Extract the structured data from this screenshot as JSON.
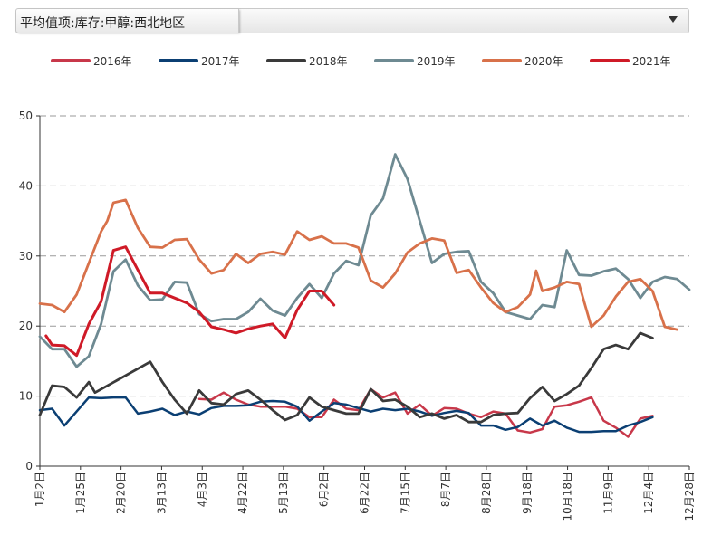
{
  "selector": {
    "value": "平均值项:库存:甲醇:西北地区"
  },
  "chart_data": {
    "type": "line",
    "title": "",
    "xlabel": "",
    "ylabel": "",
    "ylim": [
      0,
      50
    ],
    "yticks": [
      0,
      10,
      20,
      30,
      40,
      50
    ],
    "grid": "horizontal-dashed",
    "legend_position": "top",
    "xtick_labels": [
      "1月2日",
      "1月25日",
      "2月20日",
      "3月13日",
      "4月3日",
      "4月22日",
      "5月13日",
      "6月2日",
      "6月22日",
      "7月15日",
      "8月7日",
      "8月28日",
      "9月18日",
      "10月18日",
      "11月9日",
      "12月4日",
      "12月28日"
    ],
    "series": [
      {
        "name": "2016年",
        "color": "#c8384a",
        "width": 2.5,
        "points": [
          [
            13.0,
            9.6
          ],
          [
            14.0,
            9.5
          ],
          [
            15.0,
            10.5
          ],
          [
            16.0,
            9.5
          ],
          [
            17.0,
            8.8
          ],
          [
            18.0,
            8.5
          ],
          [
            19.0,
            8.5
          ],
          [
            20.0,
            8.5
          ],
          [
            21.0,
            8.2
          ],
          [
            22.0,
            7.0
          ],
          [
            23.0,
            7.0
          ],
          [
            24.0,
            9.5
          ],
          [
            25.0,
            8.2
          ],
          [
            26.0,
            8.0
          ],
          [
            27.0,
            11.0
          ],
          [
            28.0,
            9.8
          ],
          [
            29.0,
            10.5
          ],
          [
            30.0,
            7.5
          ],
          [
            31.0,
            8.8
          ],
          [
            32.0,
            7.2
          ],
          [
            33.0,
            8.3
          ],
          [
            34.0,
            8.2
          ],
          [
            35.0,
            7.5
          ],
          [
            36.0,
            7.0
          ],
          [
            37.0,
            7.8
          ],
          [
            38.0,
            7.5
          ],
          [
            39.0,
            5.1
          ],
          [
            40.0,
            4.8
          ],
          [
            41.0,
            5.3
          ],
          [
            42.0,
            8.5
          ],
          [
            43.0,
            8.7
          ],
          [
            44.0,
            9.2
          ],
          [
            45.0,
            9.8
          ],
          [
            46.0,
            6.5
          ],
          [
            47.0,
            5.5
          ],
          [
            48.0,
            4.2
          ],
          [
            49.0,
            6.8
          ],
          [
            50.0,
            7.2
          ]
        ]
      },
      {
        "name": "2017年",
        "color": "#0b3f73",
        "width": 2.5,
        "points": [
          [
            0.0,
            8.0
          ],
          [
            1.0,
            8.2
          ],
          [
            2.0,
            5.8
          ],
          [
            3.0,
            7.8
          ],
          [
            4.0,
            9.8
          ],
          [
            5.0,
            9.7
          ],
          [
            6.0,
            9.8
          ],
          [
            7.0,
            9.8
          ],
          [
            8.0,
            7.5
          ],
          [
            9.0,
            7.8
          ],
          [
            10.0,
            8.2
          ],
          [
            11.0,
            7.3
          ],
          [
            12.0,
            7.8
          ],
          [
            13.0,
            7.4
          ],
          [
            14.0,
            8.3
          ],
          [
            15.0,
            8.6
          ],
          [
            16.0,
            8.6
          ],
          [
            17.0,
            8.7
          ],
          [
            18.0,
            9.2
          ],
          [
            19.0,
            9.3
          ],
          [
            20.0,
            9.2
          ],
          [
            21.0,
            8.5
          ],
          [
            22.0,
            6.5
          ],
          [
            23.0,
            7.8
          ],
          [
            24.0,
            9.0
          ],
          [
            25.0,
            8.8
          ],
          [
            26.0,
            8.3
          ],
          [
            27.0,
            7.8
          ],
          [
            28.0,
            8.2
          ],
          [
            29.0,
            8.0
          ],
          [
            30.0,
            8.2
          ],
          [
            31.0,
            7.8
          ],
          [
            32.0,
            7.2
          ],
          [
            33.0,
            7.6
          ],
          [
            34.0,
            7.9
          ],
          [
            35.0,
            7.6
          ],
          [
            36.0,
            5.8
          ],
          [
            37.0,
            5.8
          ],
          [
            38.0,
            5.2
          ],
          [
            39.0,
            5.6
          ],
          [
            40.0,
            6.8
          ],
          [
            41.0,
            5.8
          ],
          [
            42.0,
            6.5
          ],
          [
            43.0,
            5.5
          ],
          [
            44.0,
            4.9
          ],
          [
            45.0,
            4.9
          ],
          [
            46.0,
            5.0
          ],
          [
            47.0,
            5.0
          ],
          [
            48.0,
            5.8
          ],
          [
            49.0,
            6.3
          ],
          [
            50.0,
            7.0
          ]
        ]
      },
      {
        "name": "2018年",
        "color": "#3a3a3a",
        "width": 2.8,
        "points": [
          [
            0.0,
            7.3
          ],
          [
            1.0,
            11.5
          ],
          [
            2.0,
            11.3
          ],
          [
            3.0,
            9.8
          ],
          [
            4.0,
            12.0
          ],
          [
            4.5,
            10.5
          ],
          [
            9.0,
            14.9
          ],
          [
            10.0,
            12.0
          ],
          [
            11.0,
            9.5
          ],
          [
            12.0,
            7.5
          ],
          [
            13.0,
            10.8
          ],
          [
            14.0,
            9.0
          ],
          [
            15.0,
            8.8
          ],
          [
            16.0,
            10.3
          ],
          [
            17.0,
            10.8
          ],
          [
            18.0,
            9.5
          ],
          [
            19.0,
            8.0
          ],
          [
            20.0,
            6.6
          ],
          [
            21.0,
            7.3
          ],
          [
            22.0,
            9.8
          ],
          [
            23.0,
            8.5
          ],
          [
            24.0,
            8.0
          ],
          [
            25.0,
            7.5
          ],
          [
            26.0,
            7.5
          ],
          [
            27.0,
            11.0
          ],
          [
            28.0,
            9.3
          ],
          [
            29.0,
            9.5
          ],
          [
            30.0,
            8.5
          ],
          [
            31.0,
            7.0
          ],
          [
            32.0,
            7.5
          ],
          [
            33.0,
            6.8
          ],
          [
            34.0,
            7.3
          ],
          [
            35.0,
            6.3
          ],
          [
            36.0,
            6.3
          ],
          [
            37.0,
            7.3
          ],
          [
            38.0,
            7.5
          ],
          [
            39.0,
            7.6
          ],
          [
            40.0,
            9.7
          ],
          [
            41.0,
            11.3
          ],
          [
            42.0,
            9.3
          ],
          [
            43.0,
            10.3
          ],
          [
            44.0,
            11.5
          ],
          [
            45.0,
            14.0
          ],
          [
            46.0,
            16.7
          ],
          [
            47.0,
            17.3
          ],
          [
            48.0,
            16.7
          ],
          [
            49.0,
            19.0
          ],
          [
            50.0,
            18.3
          ]
        ]
      },
      {
        "name": "2019年",
        "color": "#6e8a92",
        "width": 2.8,
        "points": [
          [
            0.0,
            18.5
          ],
          [
            1.0,
            16.7
          ],
          [
            2.0,
            16.7
          ],
          [
            3.0,
            14.2
          ],
          [
            4.0,
            15.7
          ],
          [
            5.0,
            20.3
          ],
          [
            6.0,
            27.8
          ],
          [
            7.0,
            29.5
          ],
          [
            8.0,
            25.8
          ],
          [
            9.0,
            23.7
          ],
          [
            10.0,
            23.8
          ],
          [
            11.0,
            26.3
          ],
          [
            12.0,
            26.2
          ],
          [
            13.0,
            21.7
          ],
          [
            14.0,
            20.7
          ],
          [
            15.0,
            21.0
          ],
          [
            16.0,
            21.0
          ],
          [
            17.0,
            22.0
          ],
          [
            18.0,
            23.9
          ],
          [
            19.0,
            22.2
          ],
          [
            20.0,
            21.5
          ],
          [
            21.0,
            24.0
          ],
          [
            22.0,
            26.0
          ],
          [
            23.0,
            24.0
          ],
          [
            24.0,
            27.5
          ],
          [
            25.0,
            29.3
          ],
          [
            26.0,
            28.7
          ],
          [
            27.0,
            35.8
          ],
          [
            28.0,
            38.2
          ],
          [
            29.0,
            44.5
          ],
          [
            30.0,
            41.0
          ],
          [
            31.0,
            35.0
          ],
          [
            32.0,
            29.0
          ],
          [
            33.0,
            30.3
          ],
          [
            34.0,
            30.6
          ],
          [
            35.0,
            30.7
          ],
          [
            36.0,
            26.3
          ],
          [
            37.0,
            24.7
          ],
          [
            38.0,
            22.0
          ],
          [
            39.0,
            21.5
          ],
          [
            40.0,
            21.0
          ],
          [
            41.0,
            23.0
          ],
          [
            42.0,
            22.7
          ],
          [
            43.0,
            30.8
          ],
          [
            44.0,
            27.3
          ],
          [
            45.0,
            27.2
          ],
          [
            46.0,
            27.8
          ],
          [
            47.0,
            28.2
          ],
          [
            48.0,
            26.7
          ],
          [
            49.0,
            24.0
          ],
          [
            50.0,
            26.3
          ],
          [
            51.0,
            27.0
          ],
          [
            52.0,
            26.7
          ],
          [
            53.0,
            25.2
          ]
        ]
      },
      {
        "name": "2020年",
        "color": "#d8714a",
        "width": 2.8,
        "points": [
          [
            0.0,
            23.2
          ],
          [
            1.0,
            23.0
          ],
          [
            2.0,
            22.0
          ],
          [
            3.0,
            24.5
          ],
          [
            4.0,
            29.0
          ],
          [
            5.0,
            33.5
          ],
          [
            5.5,
            35.0
          ],
          [
            6.0,
            37.6
          ],
          [
            7.0,
            38.0
          ],
          [
            8.0,
            34.0
          ],
          [
            9.0,
            31.3
          ],
          [
            10.0,
            31.2
          ],
          [
            11.0,
            32.3
          ],
          [
            12.0,
            32.4
          ],
          [
            13.0,
            29.5
          ],
          [
            14.0,
            27.5
          ],
          [
            15.0,
            28.0
          ],
          [
            16.0,
            30.3
          ],
          [
            17.0,
            29.0
          ],
          [
            18.0,
            30.3
          ],
          [
            19.0,
            30.6
          ],
          [
            20.0,
            30.2
          ],
          [
            21.0,
            33.5
          ],
          [
            22.0,
            32.3
          ],
          [
            23.0,
            32.8
          ],
          [
            24.0,
            31.8
          ],
          [
            25.0,
            31.8
          ],
          [
            26.0,
            31.2
          ],
          [
            27.0,
            26.5
          ],
          [
            28.0,
            25.5
          ],
          [
            29.0,
            27.5
          ],
          [
            30.0,
            30.5
          ],
          [
            31.0,
            31.8
          ],
          [
            32.0,
            32.5
          ],
          [
            33.0,
            32.2
          ],
          [
            34.0,
            27.6
          ],
          [
            35.0,
            28.0
          ],
          [
            36.0,
            25.5
          ],
          [
            37.0,
            23.3
          ],
          [
            38.0,
            22.0
          ],
          [
            39.0,
            22.7
          ],
          [
            40.0,
            24.5
          ],
          [
            40.5,
            27.9
          ],
          [
            41.0,
            25.0
          ],
          [
            42.0,
            25.5
          ],
          [
            43.0,
            26.3
          ],
          [
            44.0,
            26.0
          ],
          [
            45.0,
            19.9
          ],
          [
            46.0,
            21.5
          ],
          [
            47.0,
            24.2
          ],
          [
            48.0,
            26.3
          ],
          [
            49.0,
            26.7
          ],
          [
            50.0,
            25.0
          ],
          [
            51.0,
            19.9
          ],
          [
            52.0,
            19.5
          ]
        ]
      },
      {
        "name": "2021年",
        "color": "#cf1a27",
        "width": 3.0,
        "points": [
          [
            0.5,
            18.6
          ],
          [
            1.0,
            17.3
          ],
          [
            2.0,
            17.2
          ],
          [
            3.0,
            15.8
          ],
          [
            4.0,
            20.3
          ],
          [
            5.0,
            23.5
          ],
          [
            6.0,
            30.8
          ],
          [
            7.0,
            31.3
          ],
          [
            8.0,
            28.0
          ],
          [
            9.0,
            24.7
          ],
          [
            10.0,
            24.7
          ],
          [
            11.0,
            24.0
          ],
          [
            12.0,
            23.3
          ],
          [
            13.0,
            22.0
          ],
          [
            14.0,
            19.9
          ],
          [
            15.0,
            19.5
          ],
          [
            16.0,
            19.0
          ],
          [
            17.0,
            19.6
          ],
          [
            18.0,
            20.0
          ],
          [
            19.0,
            20.3
          ],
          [
            20.0,
            18.3
          ],
          [
            21.0,
            22.3
          ],
          [
            22.0,
            25.0
          ],
          [
            23.0,
            25.0
          ],
          [
            24.0,
            23.0
          ]
        ]
      }
    ]
  }
}
